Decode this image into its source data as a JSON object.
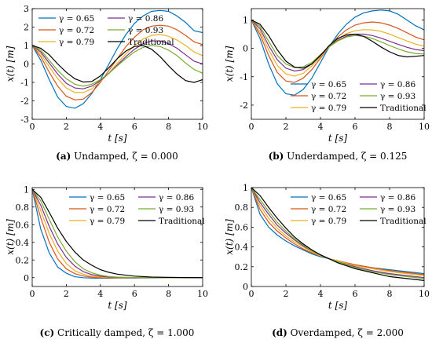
{
  "figure": {
    "colors": [
      "#0072BD",
      "#D95319",
      "#EDB120",
      "#7E2F8E",
      "#77AC30",
      "#000000"
    ]
  },
  "chart_data": [
    {
      "type": "line",
      "caption_label": "(a)",
      "caption_text": "Undamped, ζ = 0.000",
      "xlabel": "t [s]",
      "ylabel": "x(t) [m]",
      "xlim": [
        0,
        10
      ],
      "ylim": [
        -3,
        3
      ],
      "xticks": [
        "0",
        "2",
        "4",
        "6",
        "8",
        "10"
      ],
      "yticks": [
        "-3",
        "-2",
        "-1",
        "0",
        "1",
        "2",
        "3"
      ],
      "legend_position": "top-left",
      "x": [
        0,
        0.5,
        1,
        1.5,
        2,
        2.5,
        3,
        3.5,
        4,
        4.5,
        5,
        5.5,
        6,
        6.5,
        7,
        7.5,
        8,
        8.5,
        9,
        9.5,
        10
      ],
      "series": [
        {
          "name": "γ = 0.65",
          "values": [
            1.0,
            0.2,
            -0.85,
            -1.8,
            -2.3,
            -2.4,
            -2.15,
            -1.6,
            -0.85,
            0.0,
            0.85,
            1.6,
            2.2,
            2.6,
            2.85,
            2.9,
            2.85,
            2.6,
            2.25,
            1.8,
            1.7
          ]
        },
        {
          "name": "γ = 0.72",
          "values": [
            1.0,
            0.4,
            -0.45,
            -1.2,
            -1.75,
            -1.95,
            -1.9,
            -1.55,
            -1.0,
            -0.35,
            0.3,
            0.95,
            1.45,
            1.85,
            2.05,
            2.1,
            2.05,
            1.85,
            1.55,
            1.2,
            1.05
          ]
        },
        {
          "name": "γ = 0.79",
          "values": [
            1.0,
            0.55,
            -0.15,
            -0.8,
            -1.3,
            -1.55,
            -1.55,
            -1.35,
            -0.95,
            -0.5,
            0.05,
            0.55,
            1.0,
            1.35,
            1.55,
            1.6,
            1.5,
            1.3,
            1.0,
            0.65,
            0.45
          ]
        },
        {
          "name": "γ = 0.86",
          "values": [
            1.0,
            0.65,
            0.05,
            -0.55,
            -1.05,
            -1.3,
            -1.35,
            -1.2,
            -0.9,
            -0.5,
            -0.05,
            0.4,
            0.8,
            1.1,
            1.25,
            1.25,
            1.1,
            0.85,
            0.5,
            0.15,
            0.0
          ]
        },
        {
          "name": "γ = 0.93",
          "values": [
            1.0,
            0.75,
            0.2,
            -0.35,
            -0.8,
            -1.1,
            -1.2,
            -1.1,
            -0.85,
            -0.5,
            -0.1,
            0.3,
            0.65,
            0.9,
            1.0,
            0.95,
            0.75,
            0.45,
            0.05,
            -0.3,
            -0.5
          ]
        },
        {
          "name": "Traditional",
          "values": [
            1.0,
            0.85,
            0.5,
            0.0,
            -0.45,
            -0.8,
            -0.98,
            -0.95,
            -0.65,
            -0.2,
            0.3,
            0.7,
            0.95,
            1.0,
            0.8,
            0.4,
            -0.1,
            -0.55,
            -0.9,
            -1.0,
            -0.85
          ]
        }
      ]
    },
    {
      "type": "line",
      "caption_label": "(b)",
      "caption_text": "Underdamped, ζ = 0.125",
      "xlabel": "t [s]",
      "ylabel": "x(t) [m]",
      "xlim": [
        0,
        10
      ],
      "ylim": [
        -2.5,
        1.4
      ],
      "xticks": [
        "0",
        "2",
        "4",
        "6",
        "8",
        "10"
      ],
      "yticks": [
        "-2",
        "-1",
        "0",
        "1"
      ],
      "legend_position": "bottom-right",
      "x": [
        0,
        0.5,
        1,
        1.5,
        2,
        2.5,
        3,
        3.5,
        4,
        4.5,
        5,
        5.5,
        6,
        6.5,
        7,
        7.5,
        8,
        8.5,
        9,
        9.5,
        10
      ],
      "series": [
        {
          "name": "γ = 0.65",
          "values": [
            1.0,
            0.35,
            -0.55,
            -1.25,
            -1.6,
            -1.65,
            -1.45,
            -1.05,
            -0.5,
            0.05,
            0.5,
            0.85,
            1.1,
            1.25,
            1.32,
            1.35,
            1.32,
            1.2,
            1.0,
            0.8,
            0.65
          ]
        },
        {
          "name": "γ = 0.72",
          "values": [
            1.0,
            0.5,
            -0.25,
            -0.85,
            -1.15,
            -1.2,
            -1.05,
            -0.75,
            -0.35,
            0.05,
            0.4,
            0.65,
            0.82,
            0.9,
            0.93,
            0.9,
            0.82,
            0.7,
            0.55,
            0.4,
            0.3
          ]
        },
        {
          "name": "γ = 0.79",
          "values": [
            1.0,
            0.6,
            -0.05,
            -0.6,
            -0.9,
            -0.98,
            -0.88,
            -0.62,
            -0.3,
            0.05,
            0.32,
            0.52,
            0.62,
            0.66,
            0.65,
            0.6,
            0.5,
            0.38,
            0.26,
            0.15,
            0.08
          ]
        },
        {
          "name": "γ = 0.86",
          "values": [
            1.0,
            0.7,
            0.1,
            -0.4,
            -0.7,
            -0.8,
            -0.75,
            -0.55,
            -0.25,
            0.05,
            0.28,
            0.43,
            0.5,
            0.5,
            0.45,
            0.36,
            0.25,
            0.14,
            0.04,
            -0.04,
            -0.08
          ]
        },
        {
          "name": "γ = 0.93",
          "values": [
            1.0,
            0.78,
            0.25,
            -0.25,
            -0.55,
            -0.68,
            -0.65,
            -0.5,
            -0.22,
            0.05,
            0.26,
            0.4,
            0.45,
            0.43,
            0.35,
            0.23,
            0.1,
            -0.02,
            -0.12,
            -0.18,
            -0.2
          ]
        },
        {
          "name": "Traditional",
          "values": [
            1.0,
            0.85,
            0.45,
            -0.05,
            -0.45,
            -0.66,
            -0.7,
            -0.55,
            -0.25,
            0.1,
            0.35,
            0.48,
            0.5,
            0.42,
            0.25,
            0.05,
            -0.12,
            -0.25,
            -0.3,
            -0.28,
            -0.25
          ]
        }
      ]
    },
    {
      "type": "line",
      "caption_label": "(c)",
      "caption_text": "Critically damped, ζ = 1.000",
      "xlabel": "t [s]",
      "ylabel": "x(t) [m]",
      "xlim": [
        0,
        10
      ],
      "ylim": [
        -0.1,
        1.02
      ],
      "xticks": [
        "0",
        "2",
        "4",
        "6",
        "8",
        "10"
      ],
      "yticks": [
        "0",
        "0.2",
        "0.4",
        "0.6",
        "0.8",
        "1"
      ],
      "legend_position": "top-right",
      "x": [
        0,
        0.5,
        1,
        1.5,
        2,
        2.5,
        3,
        3.5,
        4,
        4.5,
        5,
        6,
        7,
        8,
        9,
        10
      ],
      "series": [
        {
          "name": "γ = 0.65",
          "values": [
            1.0,
            0.55,
            0.28,
            0.12,
            0.05,
            0.01,
            0.0,
            -0.005,
            -0.006,
            -0.006,
            -0.005,
            -0.003,
            -0.002,
            -0.001,
            0.0,
            0.0
          ]
        },
        {
          "name": "γ = 0.72",
          "values": [
            1.0,
            0.68,
            0.4,
            0.21,
            0.1,
            0.045,
            0.018,
            0.006,
            0.0,
            -0.002,
            -0.003,
            -0.002,
            -0.001,
            0.0,
            0.0,
            0.0
          ]
        },
        {
          "name": "γ = 0.79",
          "values": [
            1.0,
            0.76,
            0.5,
            0.3,
            0.16,
            0.08,
            0.038,
            0.017,
            0.007,
            0.002,
            0.0,
            -0.001,
            0.0,
            0.0,
            0.0,
            0.0
          ]
        },
        {
          "name": "γ = 0.86",
          "values": [
            1.0,
            0.82,
            0.58,
            0.38,
            0.23,
            0.13,
            0.068,
            0.034,
            0.016,
            0.007,
            0.003,
            0.0,
            0.0,
            0.0,
            0.0,
            0.0
          ]
        },
        {
          "name": "γ = 0.93",
          "values": [
            1.0,
            0.87,
            0.66,
            0.46,
            0.3,
            0.18,
            0.1,
            0.055,
            0.028,
            0.013,
            0.006,
            0.001,
            0.0,
            0.0,
            0.0,
            0.0
          ]
        },
        {
          "name": "Traditional",
          "values": [
            1.0,
            0.91,
            0.74,
            0.56,
            0.41,
            0.29,
            0.2,
            0.14,
            0.09,
            0.06,
            0.04,
            0.017,
            0.007,
            0.003,
            0.001,
            0.0
          ]
        }
      ]
    },
    {
      "type": "line",
      "caption_label": "(d)",
      "caption_text": "Overdamped, ζ = 2.000",
      "xlabel": "t [s]",
      "ylabel": "x(t) [m]",
      "xlim": [
        0,
        10
      ],
      "ylim": [
        0,
        1
      ],
      "xticks": [
        "0",
        "2",
        "4",
        "6",
        "8",
        "10"
      ],
      "yticks": [
        "0",
        "0.2",
        "0.4",
        "0.6",
        "0.8",
        "1"
      ],
      "legend_position": "top-right",
      "x": [
        0,
        0.5,
        1,
        1.5,
        2,
        2.5,
        3,
        3.5,
        4,
        4.5,
        5,
        6,
        7,
        8,
        9,
        10
      ],
      "series": [
        {
          "name": "γ = 0.65",
          "values": [
            1.0,
            0.73,
            0.6,
            0.52,
            0.46,
            0.41,
            0.37,
            0.33,
            0.3,
            0.28,
            0.26,
            0.22,
            0.19,
            0.17,
            0.15,
            0.13
          ]
        },
        {
          "name": "γ = 0.72",
          "values": [
            1.0,
            0.78,
            0.65,
            0.56,
            0.49,
            0.43,
            0.38,
            0.34,
            0.31,
            0.28,
            0.26,
            0.22,
            0.19,
            0.16,
            0.14,
            0.12
          ]
        },
        {
          "name": "γ = 0.79",
          "values": [
            1.0,
            0.82,
            0.69,
            0.59,
            0.51,
            0.45,
            0.4,
            0.35,
            0.31,
            0.28,
            0.26,
            0.21,
            0.18,
            0.15,
            0.13,
            0.11
          ]
        },
        {
          "name": "γ = 0.86",
          "values": [
            1.0,
            0.85,
            0.73,
            0.62,
            0.54,
            0.47,
            0.41,
            0.36,
            0.32,
            0.28,
            0.25,
            0.2,
            0.16,
            0.13,
            0.11,
            0.09
          ]
        },
        {
          "name": "γ = 0.93",
          "values": [
            1.0,
            0.88,
            0.76,
            0.65,
            0.56,
            0.48,
            0.42,
            0.36,
            0.32,
            0.28,
            0.25,
            0.19,
            0.15,
            0.12,
            0.1,
            0.08
          ]
        },
        {
          "name": "Traditional",
          "values": [
            1.0,
            0.92,
            0.8,
            0.69,
            0.59,
            0.5,
            0.43,
            0.37,
            0.32,
            0.28,
            0.24,
            0.18,
            0.14,
            0.1,
            0.08,
            0.06
          ]
        }
      ]
    }
  ]
}
